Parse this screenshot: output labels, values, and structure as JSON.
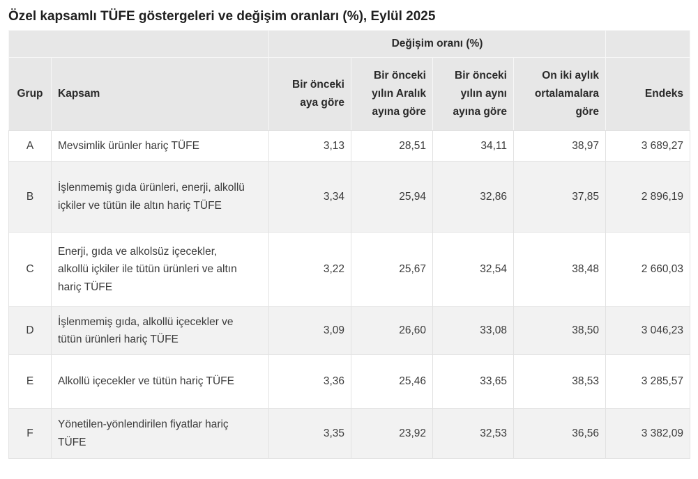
{
  "title": "Özel kapsamlı TÜFE göstergeleri ve değişim oranları (%), Eylül 2025",
  "colors": {
    "header_bg": "#e7e7e7",
    "stripe_bg": "#f2f2f2",
    "border": "#e2e2e2",
    "text": "#3b3b3b"
  },
  "table": {
    "group_header": "Değişim oranı (%)",
    "columns": [
      "Grup",
      "Kapsam",
      "Bir önceki aya göre",
      "Bir önceki yılın Aralık ayına göre",
      "Bir önceki yılın aynı ayına göre",
      "On iki aylık ortalamalara göre",
      "Endeks"
    ],
    "rows": [
      {
        "grup": "A",
        "kapsam": "Mevsimlik ürünler hariç TÜFE",
        "aylik": "3,13",
        "aralik": "28,51",
        "yillik": "34,11",
        "ortalama": "38,97",
        "endeks": "3 689,27"
      },
      {
        "grup": "B",
        "kapsam": "İşlenmemiş gıda ürünleri, enerji, alkollü içkiler ve tütün ile altın hariç TÜFE",
        "aylik": "3,34",
        "aralik": "25,94",
        "yillik": "32,86",
        "ortalama": "37,85",
        "endeks": "2 896,19"
      },
      {
        "grup": "C",
        "kapsam": "Enerji, gıda ve alkolsüz içecekler, alkollü içkiler ile tütün ürünleri ve altın hariç TÜFE",
        "aylik": "3,22",
        "aralik": "25,67",
        "yillik": "32,54",
        "ortalama": "38,48",
        "endeks": "2 660,03"
      },
      {
        "grup": "D",
        "kapsam": "İşlenmemiş gıda, alkollü içecekler ve tütün ürünleri hariç TÜFE",
        "aylik": "3,09",
        "aralik": "26,60",
        "yillik": "33,08",
        "ortalama": "38,50",
        "endeks": "3 046,23"
      },
      {
        "grup": "E",
        "kapsam": "Alkollü içecekler ve tütün hariç TÜFE",
        "aylik": "3,36",
        "aralik": "25,46",
        "yillik": "33,65",
        "ortalama": "38,53",
        "endeks": "3 285,57"
      },
      {
        "grup": "F",
        "kapsam": "Yönetilen-yönlendirilen fiyatlar hariç TÜFE",
        "aylik": "3,35",
        "aralik": "23,92",
        "yillik": "32,53",
        "ortalama": "36,56",
        "endeks": "3 382,09"
      }
    ]
  },
  "chart_data": {
    "type": "table",
    "title": "Özel kapsamlı TÜFE göstergeleri ve değişim oranları (%), Eylül 2025",
    "column_group": {
      "label": "Değişim oranı (%)",
      "spans_columns": [
        2,
        3,
        4,
        5
      ]
    },
    "columns": [
      "Grup",
      "Kapsam",
      "Bir önceki aya göre",
      "Bir önceki yılın Aralık ayına göre",
      "Bir önceki yılın aynı ayına göre",
      "On iki aylık ortalamalara göre",
      "Endeks"
    ],
    "rows": [
      [
        "A",
        "Mevsimlik ürünler hariç TÜFE",
        3.13,
        28.51,
        34.11,
        38.97,
        3689.27
      ],
      [
        "B",
        "İşlenmemiş gıda ürünleri, enerji, alkollü içkiler ve tütün ile altın hariç TÜFE",
        3.34,
        25.94,
        32.86,
        37.85,
        2896.19
      ],
      [
        "C",
        "Enerji, gıda ve alkolsüz içecekler, alkollü içkiler ile tütün ürünleri ve altın hariç TÜFE",
        3.22,
        25.67,
        32.54,
        38.48,
        2660.03
      ],
      [
        "D",
        "İşlenmemiş gıda, alkollü içecekler ve tütün ürünleri hariç TÜFE",
        3.09,
        26.6,
        33.08,
        38.5,
        3046.23
      ],
      [
        "E",
        "Alkollü içecekler ve tütün hariç TÜFE",
        3.36,
        25.46,
        33.65,
        38.53,
        3285.57
      ],
      [
        "F",
        "Yönetilen-yönlendirilen fiyatlar hariç TÜFE",
        3.35,
        23.92,
        32.53,
        36.56,
        3382.09
      ]
    ],
    "number_format": "tr-TR (comma decimal, space thousands)"
  }
}
